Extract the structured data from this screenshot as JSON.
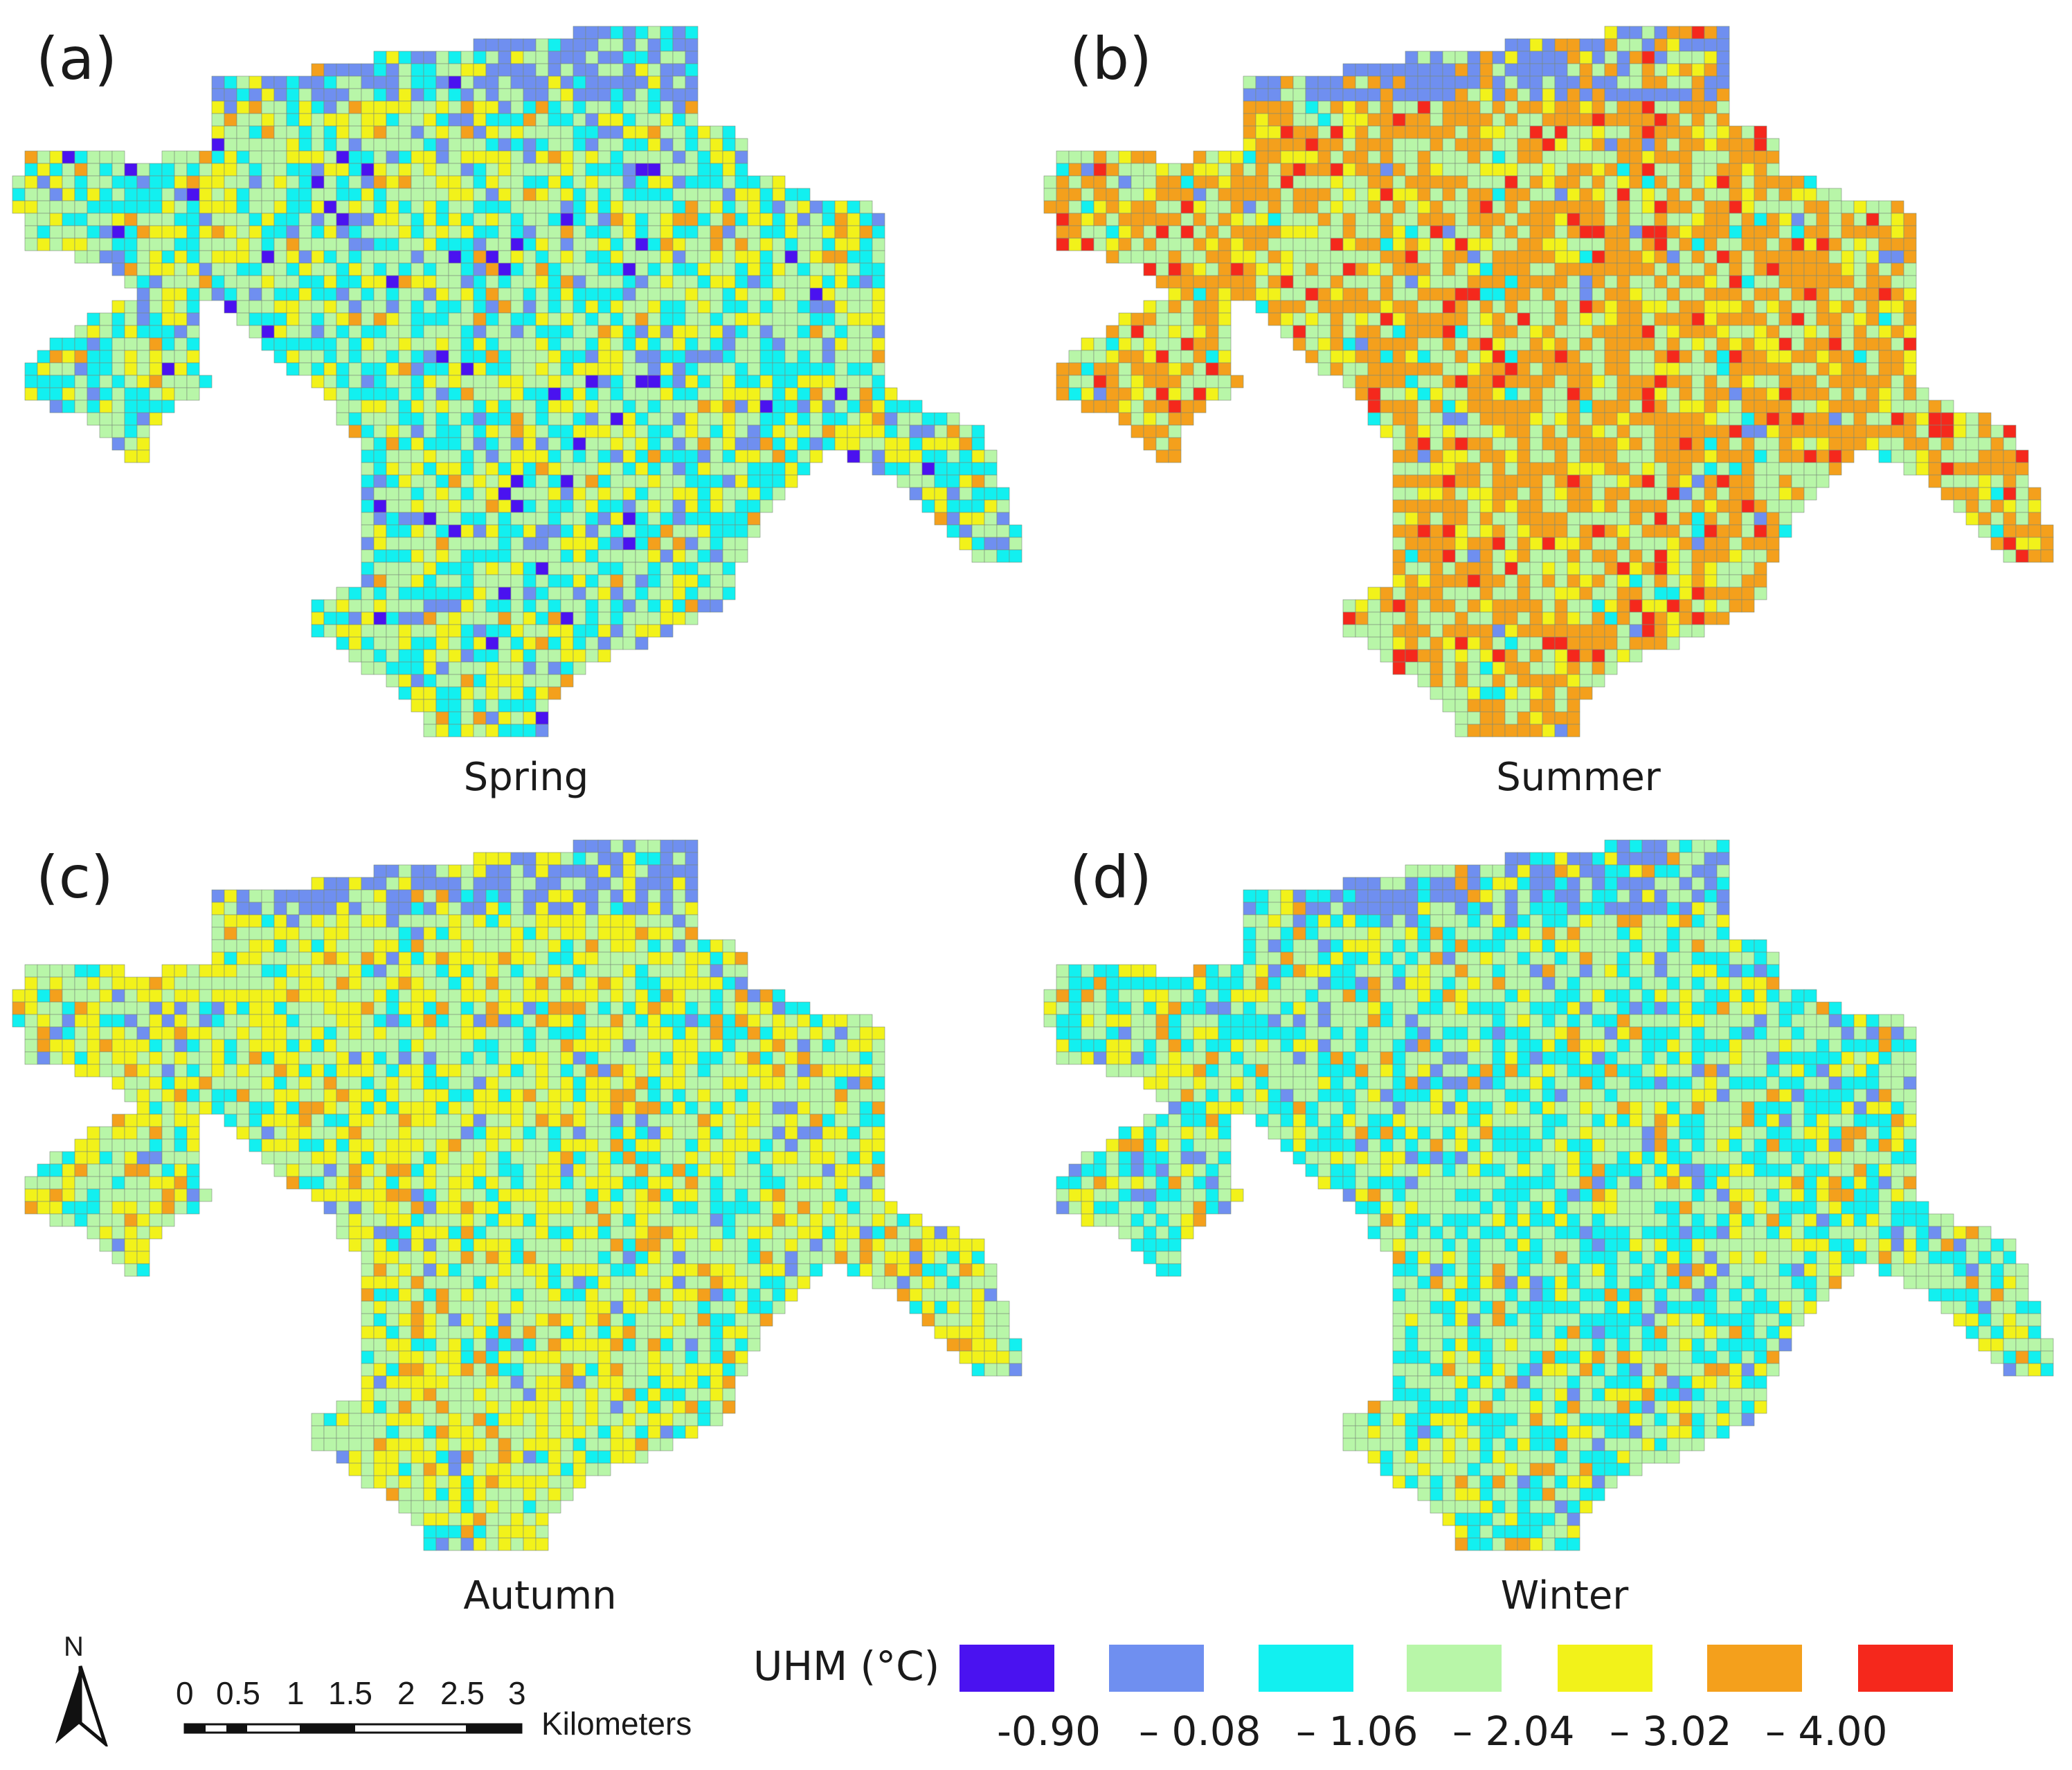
{
  "panels": [
    {
      "letter": "(a)",
      "season": "Spring",
      "scheme": "spring"
    },
    {
      "letter": "(b)",
      "season": "Summer",
      "scheme": "summer"
    },
    {
      "letter": "(c)",
      "season": "Autumn",
      "scheme": "autumn"
    },
    {
      "letter": "(d)",
      "season": "Winter",
      "scheme": "winter"
    }
  ],
  "legend": {
    "title": "UHM (°C)",
    "colors": [
      "#4a12f0",
      "#6f8ff0",
      "#12f0f0",
      "#b8f6a8",
      "#f2f21a",
      "#f4a01c",
      "#f5281c"
    ],
    "labels": [
      "-0.90",
      "– 0.08",
      "– 1.06",
      "– 2.04",
      "– 3.02",
      "– 4.00"
    ]
  },
  "scale_bar": {
    "ticks": [
      "0",
      "0.5",
      "1",
      "1.5",
      "2",
      "2.5",
      "3"
    ],
    "unit": "Kilometers"
  },
  "north_arrow": {
    "label": "N",
    "icon": "north-arrow-icon"
  }
}
